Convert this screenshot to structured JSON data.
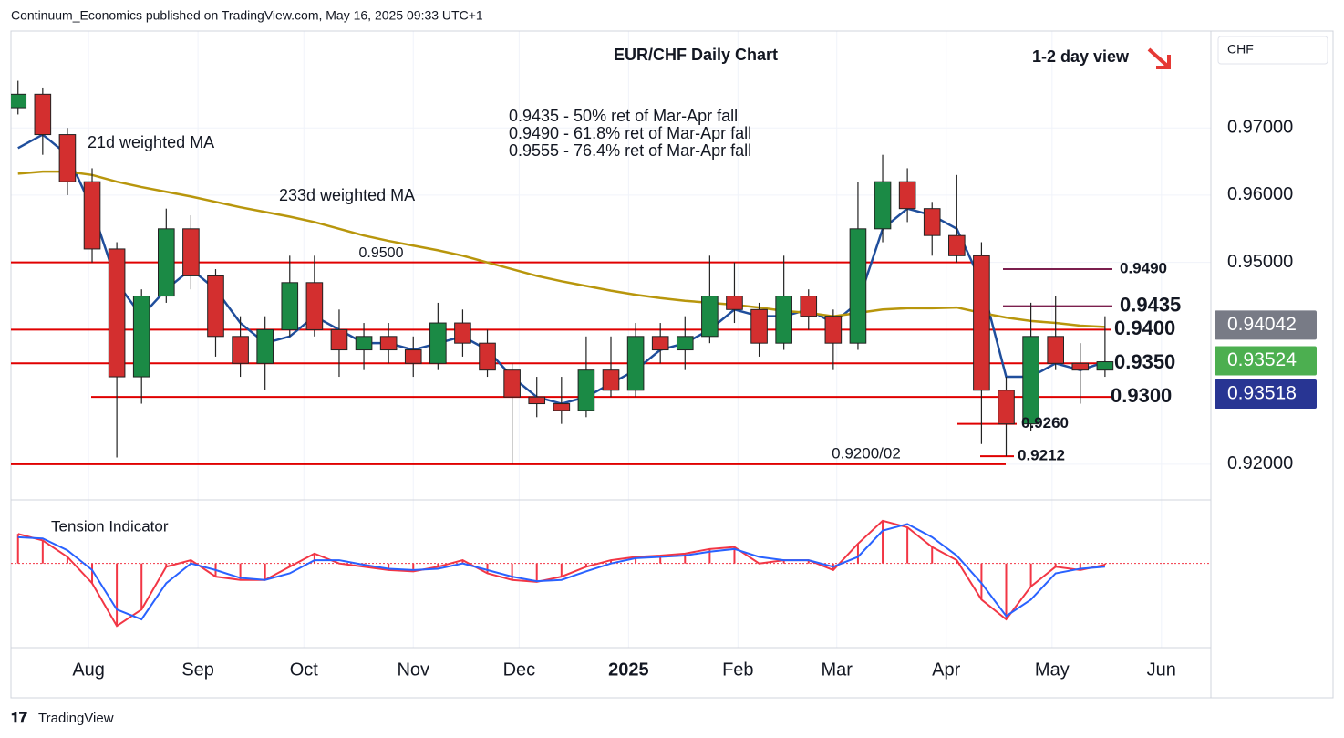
{
  "header": {
    "publisher": "Continuum_Economics published on TradingView.com, May 16, 2025 09:33 UTC+1",
    "currency": "CHF",
    "brand": "TradingView"
  },
  "chart_data": {
    "type": "candlestick",
    "title": "EUR/CHF Daily Chart",
    "subtitle": "1-2 day view",
    "x": [
      4,
      11,
      18,
      25,
      32,
      39,
      46,
      53,
      60,
      67,
      74,
      81,
      88,
      95,
      102,
      109,
      116,
      123,
      130,
      137,
      144,
      151,
      158,
      165,
      172,
      179,
      186,
      193,
      200,
      207,
      214,
      221,
      228,
      235,
      242,
      249,
      256,
      263,
      270,
      277,
      284,
      291,
      298,
      305,
      312
    ],
    "open": [
      0.973,
      0.975,
      0.969,
      0.962,
      0.952,
      0.933,
      0.945,
      0.955,
      0.948,
      0.939,
      0.935,
      0.94,
      0.947,
      0.94,
      0.937,
      0.939,
      0.937,
      0.935,
      0.941,
      0.938,
      0.934,
      0.93,
      0.929,
      0.928,
      0.934,
      0.931,
      0.939,
      0.937,
      0.939,
      0.945,
      0.943,
      0.938,
      0.945,
      0.942,
      0.938,
      0.955,
      0.962,
      0.958,
      0.954,
      0.951,
      0.931,
      0.926,
      0.939,
      0.935,
      0.934
    ],
    "high": [
      0.977,
      0.976,
      0.97,
      0.964,
      0.953,
      0.946,
      0.958,
      0.957,
      0.949,
      0.942,
      0.942,
      0.951,
      0.951,
      0.943,
      0.941,
      0.941,
      0.939,
      0.944,
      0.943,
      0.94,
      0.935,
      0.933,
      0.933,
      0.939,
      0.939,
      0.941,
      0.941,
      0.942,
      0.951,
      0.95,
      0.944,
      0.951,
      0.946,
      0.943,
      0.962,
      0.966,
      0.964,
      0.959,
      0.963,
      0.953,
      0.933,
      0.944,
      0.945,
      0.938,
      0.942
    ],
    "low": [
      0.972,
      0.966,
      0.96,
      0.95,
      0.921,
      0.929,
      0.944,
      0.946,
      0.936,
      0.933,
      0.931,
      0.939,
      0.939,
      0.933,
      0.934,
      0.935,
      0.933,
      0.934,
      0.936,
      0.933,
      0.92,
      0.927,
      0.926,
      0.927,
      0.93,
      0.93,
      0.935,
      0.934,
      0.938,
      0.941,
      0.936,
      0.937,
      0.94,
      0.934,
      0.937,
      0.953,
      0.956,
      0.951,
      0.95,
      0.923,
      0.9212,
      0.925,
      0.934,
      0.929,
      0.933
    ],
    "close": [
      0.975,
      0.969,
      0.962,
      0.952,
      0.933,
      0.945,
      0.955,
      0.948,
      0.939,
      0.935,
      0.94,
      0.947,
      0.94,
      0.937,
      0.939,
      0.937,
      0.935,
      0.941,
      0.938,
      0.934,
      0.93,
      0.929,
      0.928,
      0.934,
      0.931,
      0.939,
      0.937,
      0.939,
      0.945,
      0.943,
      0.938,
      0.945,
      0.942,
      0.938,
      0.955,
      0.962,
      0.958,
      0.954,
      0.951,
      0.931,
      0.926,
      0.939,
      0.935,
      0.934,
      0.93524
    ],
    "up_color": "#1b8a45",
    "down_color": "#d32f2f",
    "xlim": [
      2,
      342
    ],
    "xticks": [
      {
        "value": 24,
        "label": "Aug"
      },
      {
        "value": 55,
        "label": "Sep"
      },
      {
        "value": 85,
        "label": "Oct"
      },
      {
        "value": 116,
        "label": "Nov"
      },
      {
        "value": 146,
        "label": "Dec"
      },
      {
        "value": 177,
        "label": "2025"
      },
      {
        "value": 208,
        "label": "Feb"
      },
      {
        "value": 236,
        "label": "Mar"
      },
      {
        "value": 267,
        "label": "Apr"
      },
      {
        "value": 297,
        "label": "May"
      },
      {
        "value": 328,
        "label": "Jun"
      }
    ],
    "ylim": [
      0.9147,
      0.9844
    ],
    "yticks": [
      {
        "value": 0.97,
        "label": "0.97000"
      },
      {
        "value": 0.96,
        "label": "0.96000"
      },
      {
        "value": 0.95,
        "label": "0.95000"
      },
      {
        "value": 0.92,
        "label": "0.92000"
      }
    ],
    "grid": true,
    "series": [
      {
        "name": "21d weighted MA",
        "color": "#1f4e9c",
        "values": [
          0.967,
          0.969,
          0.966,
          0.958,
          0.947,
          0.942,
          0.946,
          0.949,
          0.946,
          0.941,
          0.938,
          0.939,
          0.942,
          0.94,
          0.938,
          0.938,
          0.937,
          0.938,
          0.939,
          0.937,
          0.933,
          0.93,
          0.929,
          0.93,
          0.932,
          0.934,
          0.937,
          0.938,
          0.94,
          0.943,
          0.942,
          0.942,
          0.943,
          0.941,
          0.944,
          0.955,
          0.958,
          0.957,
          0.955,
          0.947,
          0.933,
          0.933,
          0.935,
          0.934,
          0.93518
        ]
      },
      {
        "name": "233d weighted MA",
        "color": "#b8960c",
        "values": [
          0.9632,
          0.9635,
          0.9635,
          0.963,
          0.962,
          0.9612,
          0.9605,
          0.9598,
          0.959,
          0.9582,
          0.9575,
          0.9568,
          0.956,
          0.955,
          0.954,
          0.9532,
          0.9525,
          0.9518,
          0.951,
          0.95,
          0.949,
          0.948,
          0.9472,
          0.9465,
          0.9458,
          0.9452,
          0.9447,
          0.9443,
          0.944,
          0.9437,
          0.9433,
          0.9428,
          0.9425,
          0.942,
          0.9425,
          0.943,
          0.9432,
          0.9432,
          0.9433,
          0.9425,
          0.9418,
          0.9413,
          0.941,
          0.9406,
          0.94042
        ]
      }
    ],
    "price_tags": [
      {
        "value": 0.94042,
        "color": "#787b86"
      },
      {
        "value": 0.93524,
        "color": "#4caf50"
      },
      {
        "value": 0.93518,
        "color": "#283593"
      }
    ],
    "levels": [
      {
        "value": 0.95,
        "label": "0.9500",
        "color": "#e00000"
      },
      {
        "value": 0.94,
        "label": "0.9400",
        "color": "#e00000"
      },
      {
        "value": 0.935,
        "label": "0.9350",
        "color": "#e00000"
      },
      {
        "value": 0.93,
        "label": "0.9300",
        "color": "#e00000"
      },
      {
        "value": 0.926,
        "label": "0.9260",
        "color": "#e00000"
      },
      {
        "value": 0.9212,
        "color": "#e00000"
      },
      {
        "value": 0.92,
        "label": "0.9200/02",
        "color": "#e00000"
      },
      {
        "value": 0.949,
        "label": "0.9490",
        "color": "#7b1f4e"
      },
      {
        "value": 0.9435,
        "color": "#7b1f4e"
      }
    ],
    "annotations": [
      "0.9435 - 50% ret of Mar-Apr fall",
      "0.9490 - 61.8% ret of Mar-Apr fall",
      "0.9555 - 76.4% ret of Mar-Apr fall"
    ],
    "indicator": {
      "title": "Tension Indicator",
      "ylim": [
        -1.1,
        0.8
      ],
      "series": [
        {
          "color": "#f23645",
          "values": [
            0.45,
            0.35,
            0.1,
            -0.3,
            -0.95,
            -0.7,
            -0.05,
            0.05,
            -0.2,
            -0.25,
            -0.25,
            -0.05,
            0.15,
            0,
            -0.05,
            -0.1,
            -0.12,
            -0.05,
            0.05,
            -0.15,
            -0.25,
            -0.28,
            -0.2,
            -0.05,
            0.05,
            0.1,
            0.12,
            0.15,
            0.22,
            0.25,
            0,
            0.05,
            0.05,
            -0.1,
            0.3,
            0.65,
            0.55,
            0.25,
            0.05,
            -0.55,
            -0.85,
            -0.35,
            -0.05,
            -0.1,
            -0.02
          ]
        },
        {
          "color": "#2962ff",
          "values": [
            0.4,
            0.38,
            0.2,
            -0.1,
            -0.7,
            -0.85,
            -0.3,
            0,
            -0.1,
            -0.22,
            -0.25,
            -0.15,
            0.05,
            0.05,
            -0.02,
            -0.08,
            -0.1,
            -0.08,
            0,
            -0.1,
            -0.2,
            -0.27,
            -0.25,
            -0.12,
            0,
            0.08,
            0.1,
            0.12,
            0.18,
            0.22,
            0.1,
            0.05,
            0.05,
            -0.05,
            0.1,
            0.5,
            0.6,
            0.4,
            0.12,
            -0.3,
            -0.8,
            -0.55,
            -0.15,
            -0.08,
            -0.05
          ]
        }
      ]
    }
  }
}
